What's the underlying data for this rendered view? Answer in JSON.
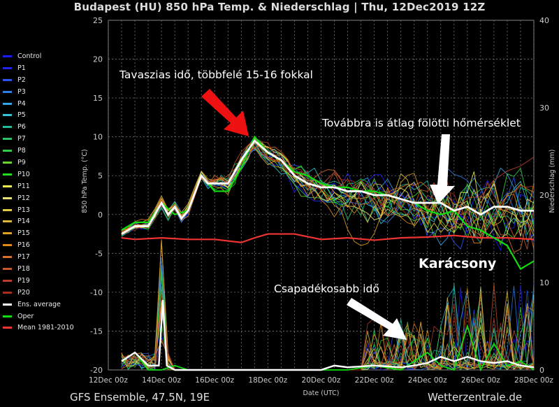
{
  "title": "Budapest  (HU)  850 hPa Temp. & Niederschlag | Thu, 12Dec2019 12Z",
  "footer_left": "GFS Ensemble, 47.5N, 19E",
  "footer_right": "Wetterzentrale.de",
  "annotations": {
    "spring": "Tavaszias idő, többfelé 15-16 fokkal",
    "above_avg": "Továbbra is átlag fölötti hőmérséklet",
    "christmas": "Karácsony",
    "wetter": "Csapadékosabb idő"
  },
  "legend": [
    {
      "label": "Control",
      "color": "#1a1aff"
    },
    {
      "label": "P1",
      "color": "#2222ee"
    },
    {
      "label": "P2",
      "color": "#2a55ee"
    },
    {
      "label": "P3",
      "color": "#2f7fe8"
    },
    {
      "label": "P4",
      "color": "#33a6e6"
    },
    {
      "label": "P5",
      "color": "#33c4d8"
    },
    {
      "label": "P6",
      "color": "#22bb99"
    },
    {
      "label": "P7",
      "color": "#2ebf6a"
    },
    {
      "label": "P8",
      "color": "#33cc44"
    },
    {
      "label": "P9",
      "color": "#66d433"
    },
    {
      "label": "P10",
      "color": "#22dd22"
    },
    {
      "label": "P11",
      "color": "#eeee55"
    },
    {
      "label": "P12",
      "color": "#e8e07a"
    },
    {
      "label": "P13",
      "color": "#e0cc44"
    },
    {
      "label": "P14",
      "color": "#dcb93a"
    },
    {
      "label": "P15",
      "color": "#e0a020"
    },
    {
      "label": "P16",
      "color": "#e08818"
    },
    {
      "label": "P17",
      "color": "#d8702a"
    },
    {
      "label": "P18",
      "color": "#c85a2a"
    },
    {
      "label": "P19",
      "color": "#b8402a"
    },
    {
      "label": "P20",
      "color": "#a83020"
    },
    {
      "label": "Ens. average",
      "color": "#ffffff"
    },
    {
      "label": "Oper",
      "color": "#11dd11"
    },
    {
      "label": "Mean 1981-2010",
      "color": "#ee3333"
    }
  ],
  "chart_data": {
    "type": "line",
    "title": "Budapest  (HU)  850 hPa Temp. & Niederschlag | Thu, 12Dec2019 12Z",
    "xlabel": "Date (UTC)",
    "ylabel": "850 hPa Temp. (°C)",
    "ylabel_right": "Niederschlag (mm)",
    "ylim": [
      -20,
      25
    ],
    "ylim_right": [
      0,
      40
    ],
    "y_ticks": [
      -20,
      -15,
      -10,
      -5,
      0,
      5,
      10,
      15,
      20,
      25
    ],
    "y_right_ticks": [
      0,
      10,
      20,
      30,
      40
    ],
    "x_ticks": [
      "12Dec 00z",
      "14Dec 00z",
      "16Dec 00z",
      "18Dec 00z",
      "20Dec 00z",
      "22Dec 00z",
      "24Dec 00z",
      "26Dec 00z",
      "28Dec 00z"
    ],
    "x_range_days": [
      0,
      16
    ],
    "grid": true,
    "legend_position": "left",
    "series": [
      {
        "name": "Ens. average",
        "x": [
          0.5,
          1,
          1.5,
          2,
          2.25,
          2.5,
          2.75,
          3,
          3.5,
          3.75,
          4,
          4.5,
          5,
          5.5,
          6,
          6.5,
          7,
          7.5,
          8,
          8.5,
          9,
          9.5,
          10,
          10.5,
          11,
          11.5,
          12,
          12.5,
          13,
          13.5,
          14,
          14.5,
          15,
          15.5,
          16
        ],
        "values": [
          -2.5,
          -1.5,
          -1.5,
          1.5,
          0,
          1,
          -0.5,
          0.5,
          5,
          4,
          4,
          4,
          7,
          9.5,
          8,
          7,
          5,
          4,
          3.5,
          3.5,
          3,
          3,
          2.5,
          2.5,
          2,
          1.5,
          1.5,
          1.5,
          0.5,
          1,
          0,
          1,
          1,
          0.5,
          0.5
        ]
      },
      {
        "name": "Oper",
        "x": [
          0.5,
          1,
          1.5,
          2,
          2.5,
          3,
          3.5,
          4,
          4.5,
          5,
          5.5,
          6,
          6.5,
          7,
          7.5,
          8,
          8.5,
          9,
          9.5,
          10,
          10.5,
          11,
          11.5,
          12,
          12.5,
          13,
          13.5,
          14,
          14.5,
          15,
          15.5,
          16
        ],
        "values": [
          -2,
          -1,
          -1,
          1.5,
          0,
          0.5,
          5,
          3,
          3,
          6,
          10,
          8,
          7,
          5.5,
          5,
          4,
          3.5,
          3.5,
          3,
          3,
          2.5,
          2,
          1.5,
          0.5,
          0,
          0.5,
          -1.5,
          -2,
          -3,
          -4,
          -7,
          -6
        ]
      },
      {
        "name": "Mean 1981-2010",
        "x": [
          0.5,
          1,
          2,
          3,
          4,
          5,
          5.5,
          6,
          7,
          8,
          9,
          10,
          11,
          12,
          13,
          14,
          15,
          16
        ],
        "values": [
          -3,
          -3.2,
          -3,
          -3.2,
          -3.2,
          -3.6,
          -3,
          -2.5,
          -2.5,
          -3.2,
          -3,
          -3.3,
          -3,
          -2.9,
          -2.7,
          -3,
          -3,
          -3.2
        ]
      }
    ],
    "precipitation_series": {
      "name": "Ens. average precipitation (mm)",
      "x": [
        0.5,
        1,
        1.5,
        1.9,
        2.05,
        2.2,
        2.5,
        3,
        4,
        6,
        8,
        8.5,
        9,
        10,
        11,
        11.5,
        12,
        12.5,
        13,
        13.5,
        14,
        14.5,
        15,
        15.5,
        16
      ],
      "values": [
        1,
        2,
        0.5,
        0.5,
        8,
        0.5,
        0,
        0,
        0,
        0,
        0,
        0.5,
        0.3,
        0.5,
        0.3,
        0.5,
        0.8,
        1.5,
        1,
        1.5,
        1,
        0.8,
        1,
        0.5,
        0.3
      ]
    },
    "oper_precipitation": {
      "name": "Oper precipitation (mm)",
      "x": [
        0.5,
        1,
        1.5,
        2,
        2.5,
        3,
        6,
        9,
        10,
        11,
        12,
        12.5,
        13,
        13.5,
        14,
        14.5,
        15,
        15.5,
        16
      ],
      "values": [
        1,
        2,
        0,
        0,
        0.5,
        0,
        0,
        0,
        0.5,
        0,
        2,
        0.5,
        0,
        5,
        0,
        3,
        0.5,
        1,
        0
      ]
    }
  }
}
